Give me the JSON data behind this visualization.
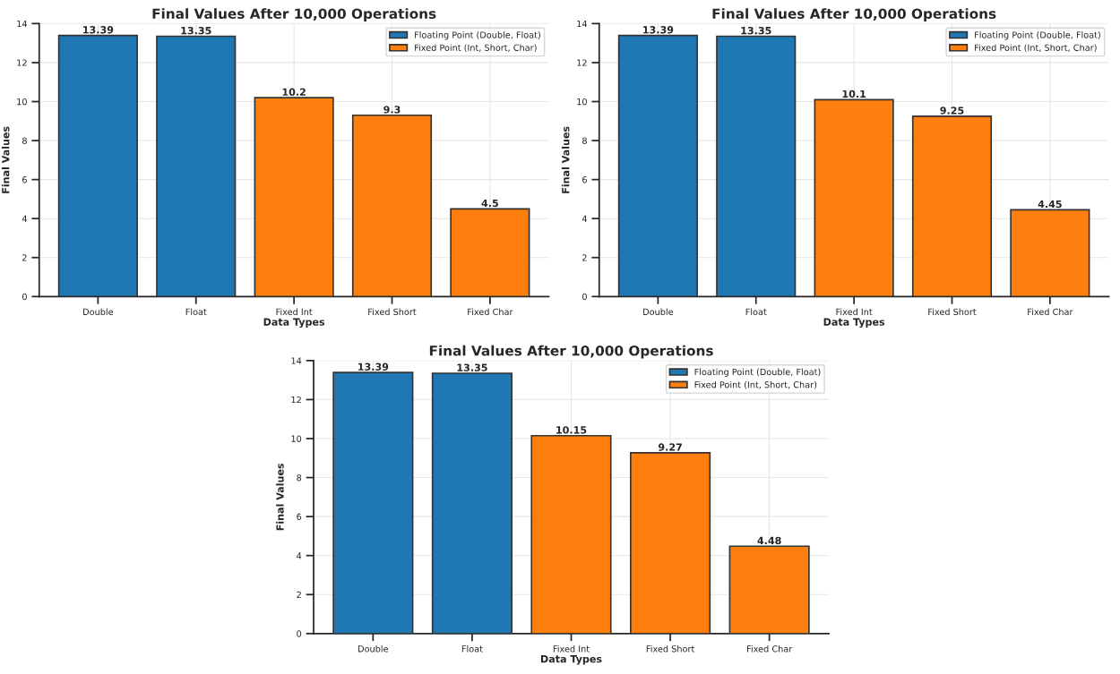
{
  "chart_data": [
    {
      "type": "bar",
      "title": "Final Values After 10,000 Operations",
      "xlabel": "Data Types",
      "ylabel": "Final Values",
      "categories": [
        "Double",
        "Float",
        "Fixed Int",
        "Fixed Short",
        "Fixed Char"
      ],
      "series": [
        {
          "name": "Floating Point (Double, Float)",
          "color": "#1f77b4",
          "values": [
            13.39,
            13.35,
            null,
            null,
            null
          ]
        },
        {
          "name": "Fixed Point (Int, Short, Char)",
          "color": "#ff7f0e",
          "values": [
            null,
            null,
            10.2,
            9.3,
            4.5
          ]
        }
      ],
      "ylim": [
        0,
        14
      ],
      "yticks": [
        0,
        2,
        4,
        6,
        8,
        10,
        12,
        14
      ],
      "grid": true,
      "legend": "top right",
      "data_labels": true
    },
    {
      "type": "bar",
      "title": "Final Values After 10,000 Operations",
      "xlabel": "Data Types",
      "ylabel": "Final Values",
      "categories": [
        "Double",
        "Float",
        "Fixed Int",
        "Fixed Short",
        "Fixed Char"
      ],
      "series": [
        {
          "name": "Floating Point (Double, Float)",
          "color": "#1f77b4",
          "values": [
            13.39,
            13.35,
            null,
            null,
            null
          ]
        },
        {
          "name": "Fixed Point (Int, Short, Char)",
          "color": "#ff7f0e",
          "values": [
            null,
            null,
            10.1,
            9.25,
            4.45
          ]
        }
      ],
      "ylim": [
        0,
        14
      ],
      "yticks": [
        0,
        2,
        4,
        6,
        8,
        10,
        12,
        14
      ],
      "grid": true,
      "legend": "top right",
      "data_labels": true
    },
    {
      "type": "bar",
      "title": "Final Values After 10,000 Operations",
      "xlabel": "Data Types",
      "ylabel": "Final Values",
      "categories": [
        "Double",
        "Float",
        "Fixed Int",
        "Fixed Short",
        "Fixed Char"
      ],
      "series": [
        {
          "name": "Floating Point (Double, Float)",
          "color": "#1f77b4",
          "values": [
            13.39,
            13.35,
            null,
            null,
            null
          ]
        },
        {
          "name": "Fixed Point (Int, Short, Char)",
          "color": "#ff7f0e",
          "values": [
            null,
            null,
            10.15,
            9.27,
            4.48
          ]
        }
      ],
      "ylim": [
        0,
        14
      ],
      "yticks": [
        0,
        2,
        4,
        6,
        8,
        10,
        12,
        14
      ],
      "grid": true,
      "legend": "top right",
      "data_labels": true
    }
  ]
}
